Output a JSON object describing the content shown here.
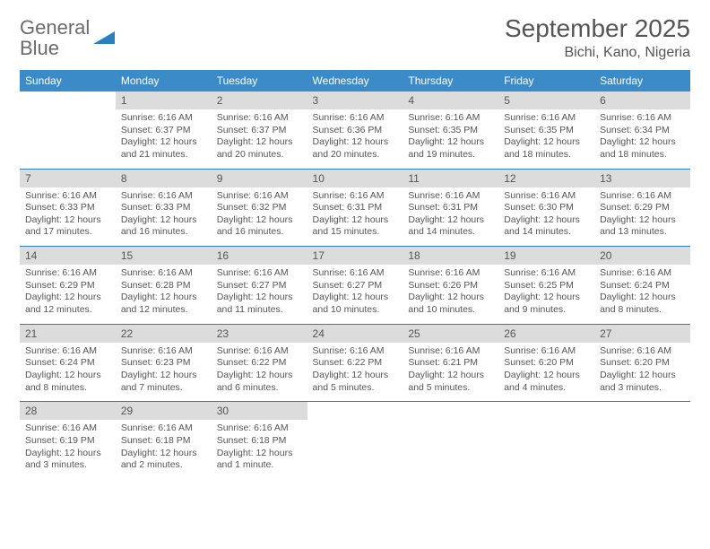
{
  "brand": {
    "part1": "General",
    "part2": "Blue"
  },
  "title": "September 2025",
  "location": "Bichi, Kano, Nigeria",
  "colors": {
    "header_bg": "#3b8bc9",
    "rule": "#2a7fbf",
    "daynum_bg": "#dcdcdc",
    "text": "#555555",
    "brand_gray": "#6b6b6b",
    "brand_blue": "#2a7fbf"
  },
  "dows": [
    "Sunday",
    "Monday",
    "Tuesday",
    "Wednesday",
    "Thursday",
    "Friday",
    "Saturday"
  ],
  "weeks": [
    [
      null,
      {
        "n": "1",
        "sr": "6:16 AM",
        "ss": "6:37 PM",
        "dl": "12 hours and 21 minutes."
      },
      {
        "n": "2",
        "sr": "6:16 AM",
        "ss": "6:37 PM",
        "dl": "12 hours and 20 minutes."
      },
      {
        "n": "3",
        "sr": "6:16 AM",
        "ss": "6:36 PM",
        "dl": "12 hours and 20 minutes."
      },
      {
        "n": "4",
        "sr": "6:16 AM",
        "ss": "6:35 PM",
        "dl": "12 hours and 19 minutes."
      },
      {
        "n": "5",
        "sr": "6:16 AM",
        "ss": "6:35 PM",
        "dl": "12 hours and 18 minutes."
      },
      {
        "n": "6",
        "sr": "6:16 AM",
        "ss": "6:34 PM",
        "dl": "12 hours and 18 minutes."
      }
    ],
    [
      {
        "n": "7",
        "sr": "6:16 AM",
        "ss": "6:33 PM",
        "dl": "12 hours and 17 minutes."
      },
      {
        "n": "8",
        "sr": "6:16 AM",
        "ss": "6:33 PM",
        "dl": "12 hours and 16 minutes."
      },
      {
        "n": "9",
        "sr": "6:16 AM",
        "ss": "6:32 PM",
        "dl": "12 hours and 16 minutes."
      },
      {
        "n": "10",
        "sr": "6:16 AM",
        "ss": "6:31 PM",
        "dl": "12 hours and 15 minutes."
      },
      {
        "n": "11",
        "sr": "6:16 AM",
        "ss": "6:31 PM",
        "dl": "12 hours and 14 minutes."
      },
      {
        "n": "12",
        "sr": "6:16 AM",
        "ss": "6:30 PM",
        "dl": "12 hours and 14 minutes."
      },
      {
        "n": "13",
        "sr": "6:16 AM",
        "ss": "6:29 PM",
        "dl": "12 hours and 13 minutes."
      }
    ],
    [
      {
        "n": "14",
        "sr": "6:16 AM",
        "ss": "6:29 PM",
        "dl": "12 hours and 12 minutes."
      },
      {
        "n": "15",
        "sr": "6:16 AM",
        "ss": "6:28 PM",
        "dl": "12 hours and 12 minutes."
      },
      {
        "n": "16",
        "sr": "6:16 AM",
        "ss": "6:27 PM",
        "dl": "12 hours and 11 minutes."
      },
      {
        "n": "17",
        "sr": "6:16 AM",
        "ss": "6:27 PM",
        "dl": "12 hours and 10 minutes."
      },
      {
        "n": "18",
        "sr": "6:16 AM",
        "ss": "6:26 PM",
        "dl": "12 hours and 10 minutes."
      },
      {
        "n": "19",
        "sr": "6:16 AM",
        "ss": "6:25 PM",
        "dl": "12 hours and 9 minutes."
      },
      {
        "n": "20",
        "sr": "6:16 AM",
        "ss": "6:24 PM",
        "dl": "12 hours and 8 minutes."
      }
    ],
    [
      {
        "n": "21",
        "sr": "6:16 AM",
        "ss": "6:24 PM",
        "dl": "12 hours and 8 minutes."
      },
      {
        "n": "22",
        "sr": "6:16 AM",
        "ss": "6:23 PM",
        "dl": "12 hours and 7 minutes."
      },
      {
        "n": "23",
        "sr": "6:16 AM",
        "ss": "6:22 PM",
        "dl": "12 hours and 6 minutes."
      },
      {
        "n": "24",
        "sr": "6:16 AM",
        "ss": "6:22 PM",
        "dl": "12 hours and 5 minutes."
      },
      {
        "n": "25",
        "sr": "6:16 AM",
        "ss": "6:21 PM",
        "dl": "12 hours and 5 minutes."
      },
      {
        "n": "26",
        "sr": "6:16 AM",
        "ss": "6:20 PM",
        "dl": "12 hours and 4 minutes."
      },
      {
        "n": "27",
        "sr": "6:16 AM",
        "ss": "6:20 PM",
        "dl": "12 hours and 3 minutes."
      }
    ],
    [
      {
        "n": "28",
        "sr": "6:16 AM",
        "ss": "6:19 PM",
        "dl": "12 hours and 3 minutes."
      },
      {
        "n": "29",
        "sr": "6:16 AM",
        "ss": "6:18 PM",
        "dl": "12 hours and 2 minutes."
      },
      {
        "n": "30",
        "sr": "6:16 AM",
        "ss": "6:18 PM",
        "dl": "12 hours and 1 minute."
      },
      null,
      null,
      null,
      null
    ]
  ],
  "labels": {
    "sunrise": "Sunrise:",
    "sunset": "Sunset:",
    "daylight": "Daylight:"
  }
}
